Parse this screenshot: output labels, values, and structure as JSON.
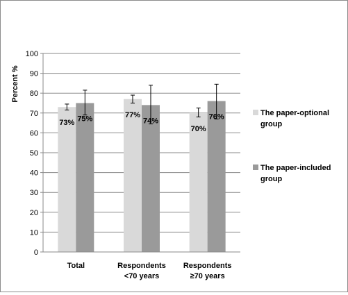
{
  "chart_data": {
    "type": "bar",
    "ylabel": "Percent %",
    "xlabel": "",
    "ylim": [
      0,
      100
    ],
    "ytick_step": 10,
    "grid": true,
    "legend_position": "right",
    "categories": [
      [
        "Total"
      ],
      [
        "Respondents",
        "<70 years"
      ],
      [
        "Respondents",
        "≥70 years"
      ]
    ],
    "series": [
      {
        "name": [
          "The paper-optional",
          "group"
        ],
        "color": "#d9d9d9",
        "values": [
          73,
          77,
          70
        ],
        "labels": [
          "73%",
          "77%",
          "70%"
        ],
        "error_low": [
          71.5,
          75,
          68
        ],
        "error_high": [
          74.5,
          79,
          72.5
        ]
      },
      {
        "name": [
          "The paper-included",
          "group"
        ],
        "color": "#9a9a9a",
        "values": [
          75,
          74,
          76
        ],
        "labels": [
          "75%",
          "74%",
          "76%"
        ],
        "error_low": [
          69,
          64.5,
          67
        ],
        "error_high": [
          81.5,
          84,
          84.5
        ]
      }
    ]
  }
}
